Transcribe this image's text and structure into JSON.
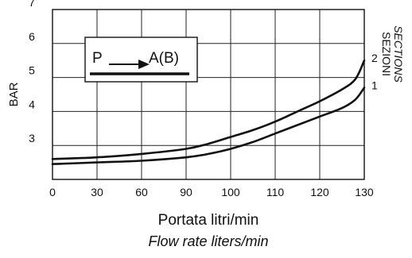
{
  "chart_data": {
    "type": "line",
    "xlabel": "Portata litri/min",
    "xlabel_secondary": "Flow rate liters/min",
    "ylabel": "BAR",
    "series_legend_title": "SEZIONI",
    "series_legend_title_secondary": "SECTIONS",
    "x_ticks": [
      "0",
      "30",
      "60",
      "90",
      "100",
      "110",
      "120",
      "130"
    ],
    "y_ticks": [
      "3",
      "4",
      "5",
      "6",
      "7"
    ],
    "ylim": [
      2,
      7
    ],
    "grid": true,
    "inset_label": {
      "from": "P",
      "to": "A(B)"
    },
    "series": [
      {
        "name": "1",
        "x_index": [
          0,
          1,
          2,
          3,
          3.5,
          4,
          4.5,
          5,
          5.5,
          6,
          6.5,
          6.8,
          7
        ],
        "y": [
          2.45,
          2.5,
          2.55,
          2.65,
          2.75,
          2.9,
          3.1,
          3.35,
          3.6,
          3.85,
          4.1,
          4.35,
          4.7
        ]
      },
      {
        "name": "2",
        "x_index": [
          0,
          1,
          2,
          3,
          3.5,
          4,
          4.5,
          5,
          5.5,
          6,
          6.5,
          6.8,
          7
        ],
        "y": [
          2.6,
          2.65,
          2.75,
          2.9,
          3.05,
          3.25,
          3.45,
          3.7,
          4.0,
          4.3,
          4.65,
          4.95,
          5.5
        ]
      }
    ]
  }
}
